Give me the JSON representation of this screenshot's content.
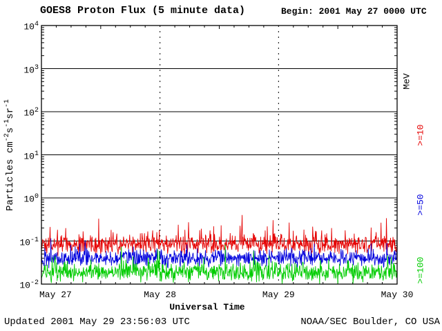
{
  "page": {
    "background": "#ffffff"
  },
  "header": {
    "title": "GOES8 Proton Flux (5 minute data)",
    "begin": "Begin: 2001 May 27 0000 UTC"
  },
  "footer": {
    "updated": "Updated 2001 May 29 23:56:03 UTC",
    "source": "NOAA/SEC Boulder, CO USA"
  },
  "chart_data": {
    "type": "line",
    "title": "GOES8 Proton Flux (5 minute data)",
    "xlabel": "Universal Time",
    "ylabel_text": "Particles cm-2 s-1 sr-1",
    "ylabel_segments": [
      {
        "t": "Particles cm"
      },
      {
        "sup": "-2"
      },
      {
        "t": "s"
      },
      {
        "sup": "-1"
      },
      {
        "t": "sr"
      },
      {
        "sup": "-1"
      }
    ],
    "x_scale": {
      "start": "2001 May 27 0000 UTC",
      "days": 3,
      "cadence_minutes": 5,
      "tick_labels": [
        "May 27",
        "May 28",
        "May 29",
        "May 30"
      ]
    },
    "y_scale": {
      "log": true,
      "min": 0.01,
      "max": 10000,
      "tick_exponents": [
        "4",
        "3",
        "2",
        "1",
        "0",
        "-1",
        "-2"
      ]
    },
    "grid": {
      "h_solid_lines_at_exponents": [
        3,
        2,
        1,
        0,
        -1
      ],
      "v_dashed_lines_at_days": [
        1,
        2
      ]
    },
    "right_axis": {
      "unit": "MeV"
    },
    "series": [
      {
        "label": ">=10",
        "name": ">=10 MeV protons",
        "color": "#e50000",
        "approx_median_flux": 0.09,
        "approx_range": [
          0.04,
          0.5
        ],
        "gen": {
          "seed": 20010527,
          "base_log": -1.08,
          "spread": 0.21,
          "spike_prob": 0.1,
          "spike_max": 0.55
        }
      },
      {
        "label": ">=50",
        "name": ">=50 MeV protons",
        "color": "#0000dd",
        "approx_median_flux": 0.045,
        "approx_range": [
          0.02,
          0.12
        ],
        "gen": {
          "seed": 50527,
          "base_log": -1.4,
          "spread": 0.19,
          "spike_prob": 0.05,
          "spike_max": 0.35
        }
      },
      {
        "label": ">=100",
        "name": ">=100 MeV protons",
        "color": "#00cc00",
        "approx_median_flux": 0.02,
        "approx_range": [
          0.01,
          0.08
        ],
        "gen": {
          "seed": 100527,
          "base_log": -1.72,
          "spread": 0.22,
          "spike_prob": 0.05,
          "spike_max": 0.45
        }
      }
    ]
  }
}
